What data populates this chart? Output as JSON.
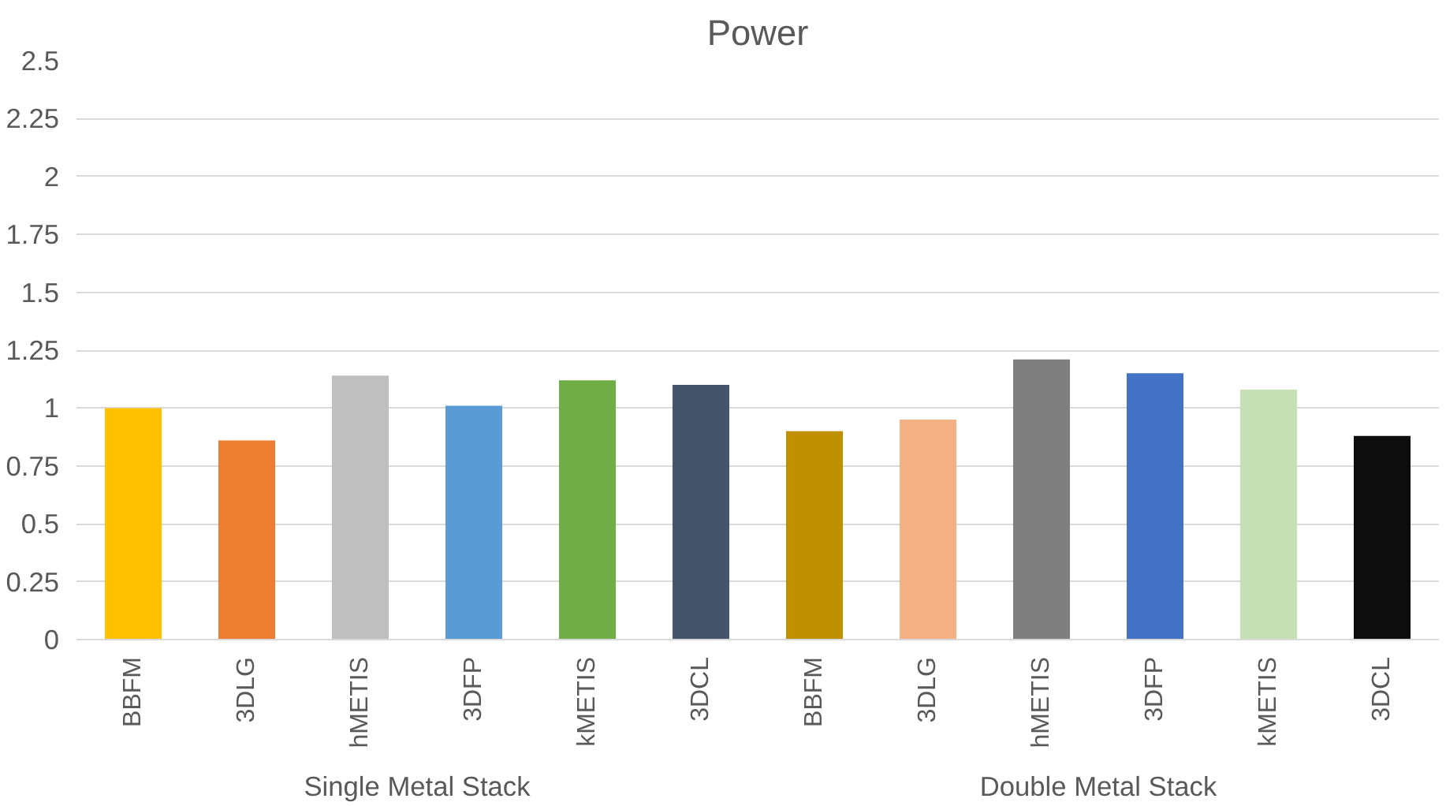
{
  "chart_data": {
    "type": "bar",
    "title": "Power",
    "categories": [
      "BBFM",
      "3DLG",
      "hMETIS",
      "3DFP",
      "kMETIS",
      "3DCL",
      "BBFM",
      "3DLG",
      "hMETIS",
      "3DFP",
      "kMETIS",
      "3DCL"
    ],
    "values": [
      1.0,
      0.86,
      1.14,
      1.01,
      1.12,
      1.1,
      0.9,
      0.95,
      1.21,
      1.15,
      1.08,
      0.88
    ],
    "colors": [
      "#ffc000",
      "#ed7d31",
      "#bfbfbf",
      "#5b9bd5",
      "#70ad47",
      "#44546a",
      "#bf9000",
      "#f4b183",
      "#7f7f7f",
      "#4472c4",
      "#c5e0b4",
      "#0d0d0d"
    ],
    "annotations": [
      "Single Metal Stack",
      "Double Metal Stack"
    ],
    "ylim": [
      0,
      2.5
    ],
    "yticks": [
      0,
      0.25,
      0.5,
      0.75,
      1,
      1.25,
      1.5,
      1.75,
      2,
      2.25,
      2.5
    ],
    "grid": "y"
  }
}
